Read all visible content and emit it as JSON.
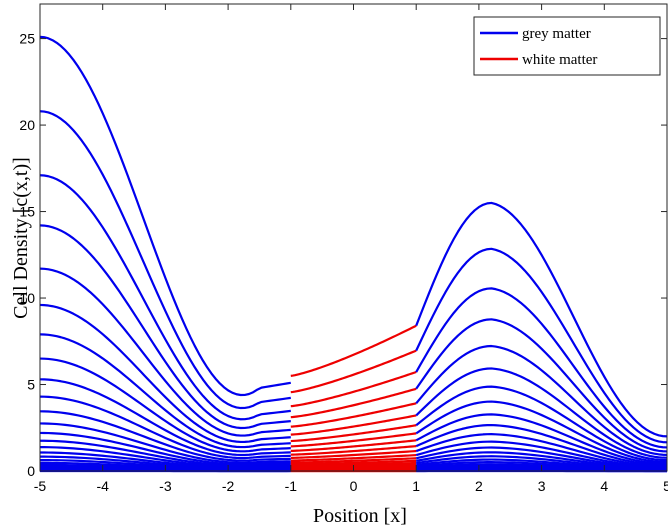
{
  "chart_data": {
    "type": "line",
    "xlabel": "Position [x]",
    "ylabel": "Cell Density [c(x,t)]",
    "xlim": [
      -5,
      5
    ],
    "ylim": [
      0,
      27
    ],
    "xticks": [
      "-5",
      "-4",
      "-3",
      "-2",
      "-1",
      "0",
      "1",
      "2",
      "3",
      "4",
      "5"
    ],
    "yticks": [
      "0",
      "5",
      "10",
      "15",
      "20",
      "25"
    ],
    "grid": false,
    "legend": {
      "placement": "top-right",
      "entries": [
        {
          "label": "grey matter",
          "color": "#0000ee"
        },
        {
          "label": "white matter",
          "color": "#ee0000"
        }
      ]
    },
    "regions": [
      {
        "name": "grey matter",
        "x_range": [
          -5,
          -1
        ],
        "color": "#0000ee"
      },
      {
        "name": "white matter",
        "x_range": [
          -1,
          1
        ],
        "color": "#ee0000"
      },
      {
        "name": "grey matter",
        "x_range": [
          1,
          5
        ],
        "color": "#0000ee"
      }
    ],
    "curve_count": 30,
    "top_curve": {
      "at_x_-5": 25.1,
      "at_x_-1.5": 4.8,
      "at_x_-1_left": 5.1,
      "at_x_-1_right": 5.5,
      "at_x_1_left": 8.4,
      "at_x_1_right": 8.4,
      "peak_x": 2.2,
      "peak_y": 15.5,
      "at_x_5": 2.0
    },
    "curve_levels_at_x_-5": [
      25.1,
      20.8,
      17.1,
      14.2,
      11.7,
      9.6,
      7.9,
      6.5,
      5.3,
      4.3,
      3.45,
      2.75,
      2.2,
      1.75,
      1.38,
      1.07,
      0.83,
      0.63,
      0.47,
      0.35,
      0.25,
      0.18,
      0.12,
      0.08,
      0.05,
      0.03,
      0.02,
      0.01,
      0.005,
      0.0
    ]
  }
}
